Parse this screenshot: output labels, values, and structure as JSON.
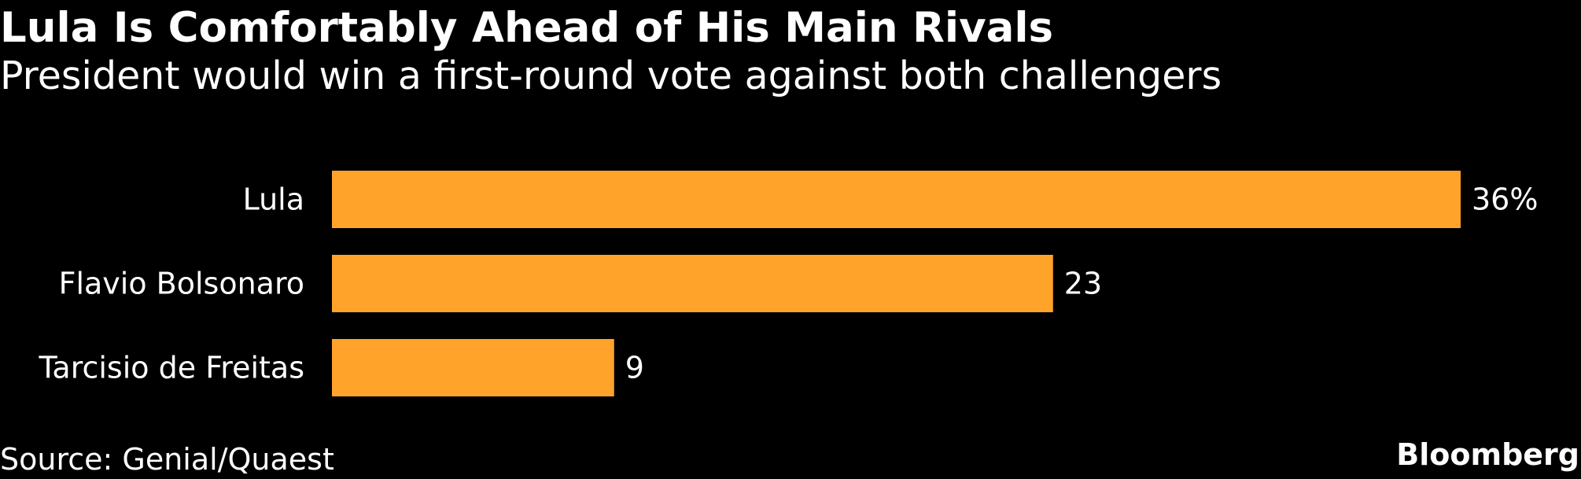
{
  "chart_data": {
    "type": "bar",
    "orientation": "horizontal",
    "title": "Lula Is Comfortably Ahead of His Main Rivals",
    "subtitle": "President would win a first-round vote against both challengers",
    "categories": [
      "Lula",
      "Flavio Bolsonaro",
      "Tarcisio de Freitas"
    ],
    "values": [
      36,
      23,
      9
    ],
    "value_labels": [
      "36%",
      "23",
      "9"
    ],
    "unit": "%",
    "bar_color": "#FFA32B",
    "xlim": [
      0,
      36
    ],
    "grid": false,
    "legend": "none"
  },
  "footer": {
    "source": "Source: Genial/Quaest",
    "brand": "Bloomberg"
  },
  "colors": {
    "background": "#000000",
    "text": "#FFFFFF",
    "bar": "#FFA32B"
  }
}
